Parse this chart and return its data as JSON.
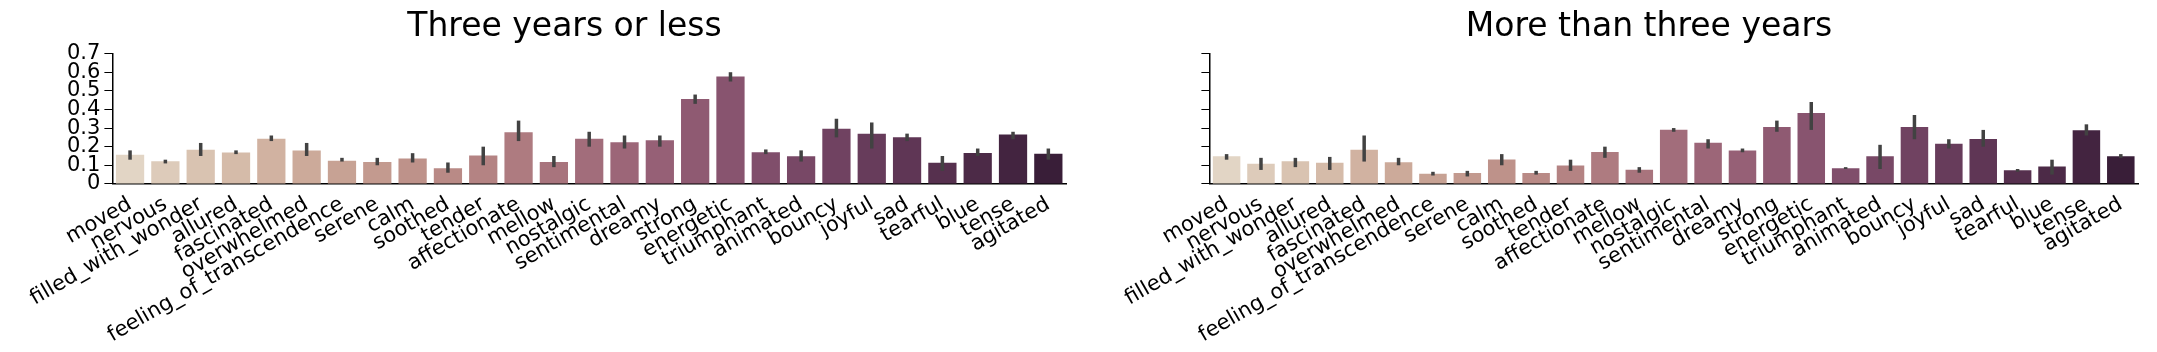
{
  "chart_data": [
    {
      "type": "bar",
      "title": "Three years or less",
      "categories": [
        "moved",
        "nervous",
        "filled_with_wonder",
        "allured",
        "fascinated",
        "overwhelmed",
        "feeling_of_transcendence",
        "serene",
        "calm",
        "soothed",
        "tender",
        "affectionate",
        "mellow",
        "nostalgic",
        "sentimental",
        "dreamy",
        "strong",
        "energetic",
        "triumphant",
        "animated",
        "bouncy",
        "joyful",
        "sad",
        "tearful",
        "blue",
        "tense",
        "agitated"
      ],
      "values": [
        0.156,
        0.121,
        0.183,
        0.168,
        0.242,
        0.179,
        0.125,
        0.117,
        0.136,
        0.084,
        0.152,
        0.277,
        0.117,
        0.242,
        0.224,
        0.234,
        0.456,
        0.577,
        0.17,
        0.148,
        0.296,
        0.269,
        0.25,
        0.113,
        0.166,
        0.265,
        0.162
      ],
      "errors": [
        [
          0.13,
          0.18
        ],
        [
          0.11,
          0.13
        ],
        [
          0.15,
          0.22
        ],
        [
          0.16,
          0.18
        ],
        [
          0.23,
          0.26
        ],
        [
          0.15,
          0.22
        ],
        [
          0.12,
          0.14
        ],
        [
          0.1,
          0.14
        ],
        [
          0.115,
          0.165
        ],
        [
          0.06,
          0.115
        ],
        [
          0.1,
          0.2
        ],
        [
          0.23,
          0.34
        ],
        [
          0.09,
          0.15
        ],
        [
          0.2,
          0.28
        ],
        [
          0.19,
          0.26
        ],
        [
          0.2,
          0.26
        ],
        [
          0.43,
          0.48
        ],
        [
          0.55,
          0.6
        ],
        [
          0.16,
          0.185
        ],
        [
          0.12,
          0.18
        ],
        [
          0.25,
          0.35
        ],
        [
          0.19,
          0.33
        ],
        [
          0.23,
          0.27
        ],
        [
          0.07,
          0.15
        ],
        [
          0.15,
          0.19
        ],
        [
          0.24,
          0.28
        ],
        [
          0.13,
          0.19
        ]
      ],
      "colors": [
        "#e2d5c5",
        "#ddcbba",
        "#d9c3b1",
        "#d5bba9",
        "#d1b2a1",
        "#ccaa9a",
        "#c7a294",
        "#c39a8f",
        "#be928a",
        "#b98a86",
        "#b48383",
        "#ae7b80",
        "#a8747d",
        "#a26d7b",
        "#9c6678",
        "#966076",
        "#8f5a72",
        "#88546f",
        "#804e6b",
        "#784866",
        "#704261",
        "#673c5b",
        "#5f3655",
        "#56304e",
        "#4c2a47",
        "#432440",
        "#391e38"
      ],
      "ylim": [
        0,
        0.7
      ],
      "yticks": [
        0,
        0.1,
        0.2,
        0.3,
        0.4,
        0.5,
        0.6,
        0.7
      ],
      "grid": false
    },
    {
      "type": "bar",
      "title": "More than three years",
      "categories": [
        "moved",
        "nervous",
        "filled_with_wonder",
        "allured",
        "fascinated",
        "overwhelmed",
        "feeling_of_transcendence",
        "serene",
        "calm",
        "soothed",
        "tender",
        "affectionate",
        "mellow",
        "nostalgic",
        "sentimental",
        "dreamy",
        "strong",
        "energetic",
        "triumphant",
        "animated",
        "bouncy",
        "joyful",
        "sad",
        "tearful",
        "blue",
        "tense",
        "agitated"
      ],
      "values": [
        0.148,
        0.108,
        0.122,
        0.113,
        0.183,
        0.116,
        0.055,
        0.058,
        0.131,
        0.058,
        0.099,
        0.172,
        0.076,
        0.291,
        0.221,
        0.18,
        0.305,
        0.381,
        0.084,
        0.148,
        0.305,
        0.215,
        0.241,
        0.073,
        0.093,
        0.288,
        0.148
      ],
      "errors": [
        [
          0.13,
          0.16
        ],
        [
          0.075,
          0.14
        ],
        [
          0.09,
          0.14
        ],
        [
          0.075,
          0.145
        ],
        [
          0.12,
          0.26
        ],
        [
          0.1,
          0.14
        ],
        [
          0.045,
          0.065
        ],
        [
          0.04,
          0.07
        ],
        [
          0.1,
          0.16
        ],
        [
          0.05,
          0.07
        ],
        [
          0.07,
          0.13
        ],
        [
          0.14,
          0.2
        ],
        [
          0.06,
          0.09
        ],
        [
          0.28,
          0.3
        ],
        [
          0.19,
          0.24
        ],
        [
          0.17,
          0.19
        ],
        [
          0.28,
          0.34
        ],
        [
          0.29,
          0.44
        ],
        [
          0.08,
          0.09
        ],
        [
          0.08,
          0.21
        ],
        [
          0.24,
          0.37
        ],
        [
          0.19,
          0.24
        ],
        [
          0.2,
          0.29
        ],
        [
          0.065,
          0.08
        ],
        [
          0.05,
          0.13
        ],
        [
          0.26,
          0.32
        ],
        [
          0.14,
          0.16
        ]
      ],
      "colors": [
        "#e2d5c5",
        "#ddcbba",
        "#d9c3b1",
        "#d5bba9",
        "#d1b2a1",
        "#ccaa9a",
        "#c7a294",
        "#c39a8f",
        "#be928a",
        "#b98a86",
        "#b48383",
        "#ae7b80",
        "#a8747d",
        "#a26d7b",
        "#9c6678",
        "#966076",
        "#8f5a72",
        "#88546f",
        "#804e6b",
        "#784866",
        "#704261",
        "#673c5b",
        "#5f3655",
        "#56304e",
        "#4c2a47",
        "#432440",
        "#391e38"
      ],
      "ylim": [
        0,
        0.7
      ],
      "yticks": [
        0,
        0.1,
        0.2,
        0.3,
        0.4,
        0.5,
        0.6,
        0.7
      ],
      "grid": false,
      "tick_labels": "x"
    }
  ]
}
